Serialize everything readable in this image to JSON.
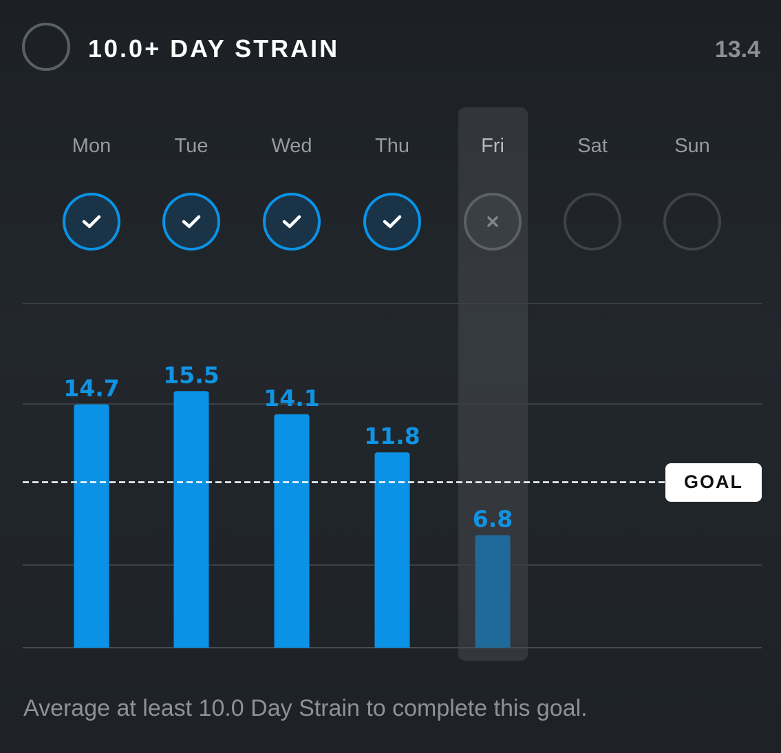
{
  "header": {
    "title": "10.0+ DAY STRAIN",
    "current_value": "13.4"
  },
  "days": [
    {
      "label": "Mon",
      "status": "done",
      "status_icon": "check-icon"
    },
    {
      "label": "Tue",
      "status": "done",
      "status_icon": "check-icon"
    },
    {
      "label": "Wed",
      "status": "done",
      "status_icon": "check-icon"
    },
    {
      "label": "Thu",
      "status": "done",
      "status_icon": "check-icon"
    },
    {
      "label": "Fri",
      "status": "missed",
      "status_icon": "x-icon",
      "selected": true
    },
    {
      "label": "Sat",
      "status": "empty"
    },
    {
      "label": "Sun",
      "status": "empty"
    }
  ],
  "goal_label": "GOAL",
  "footer_text": "Average at least 10.0 Day Strain to complete this goal.",
  "colors": {
    "accent": "#0a93e6",
    "bar": "#0a93e6",
    "bar_below_goal": "#1f6a9b",
    "value_label": "#1193e4"
  },
  "chart_data": {
    "type": "bar",
    "categories": [
      "Mon",
      "Tue",
      "Wed",
      "Thu",
      "Fri",
      "Sat",
      "Sun"
    ],
    "values": [
      14.7,
      15.5,
      14.1,
      11.8,
      6.8,
      null,
      null
    ],
    "value_labels": [
      "14.7",
      "15.5",
      "14.1",
      "11.8",
      "6.8",
      "",
      ""
    ],
    "goal": 10.0,
    "ylim": [
      0,
      21
    ],
    "grid": true
  }
}
